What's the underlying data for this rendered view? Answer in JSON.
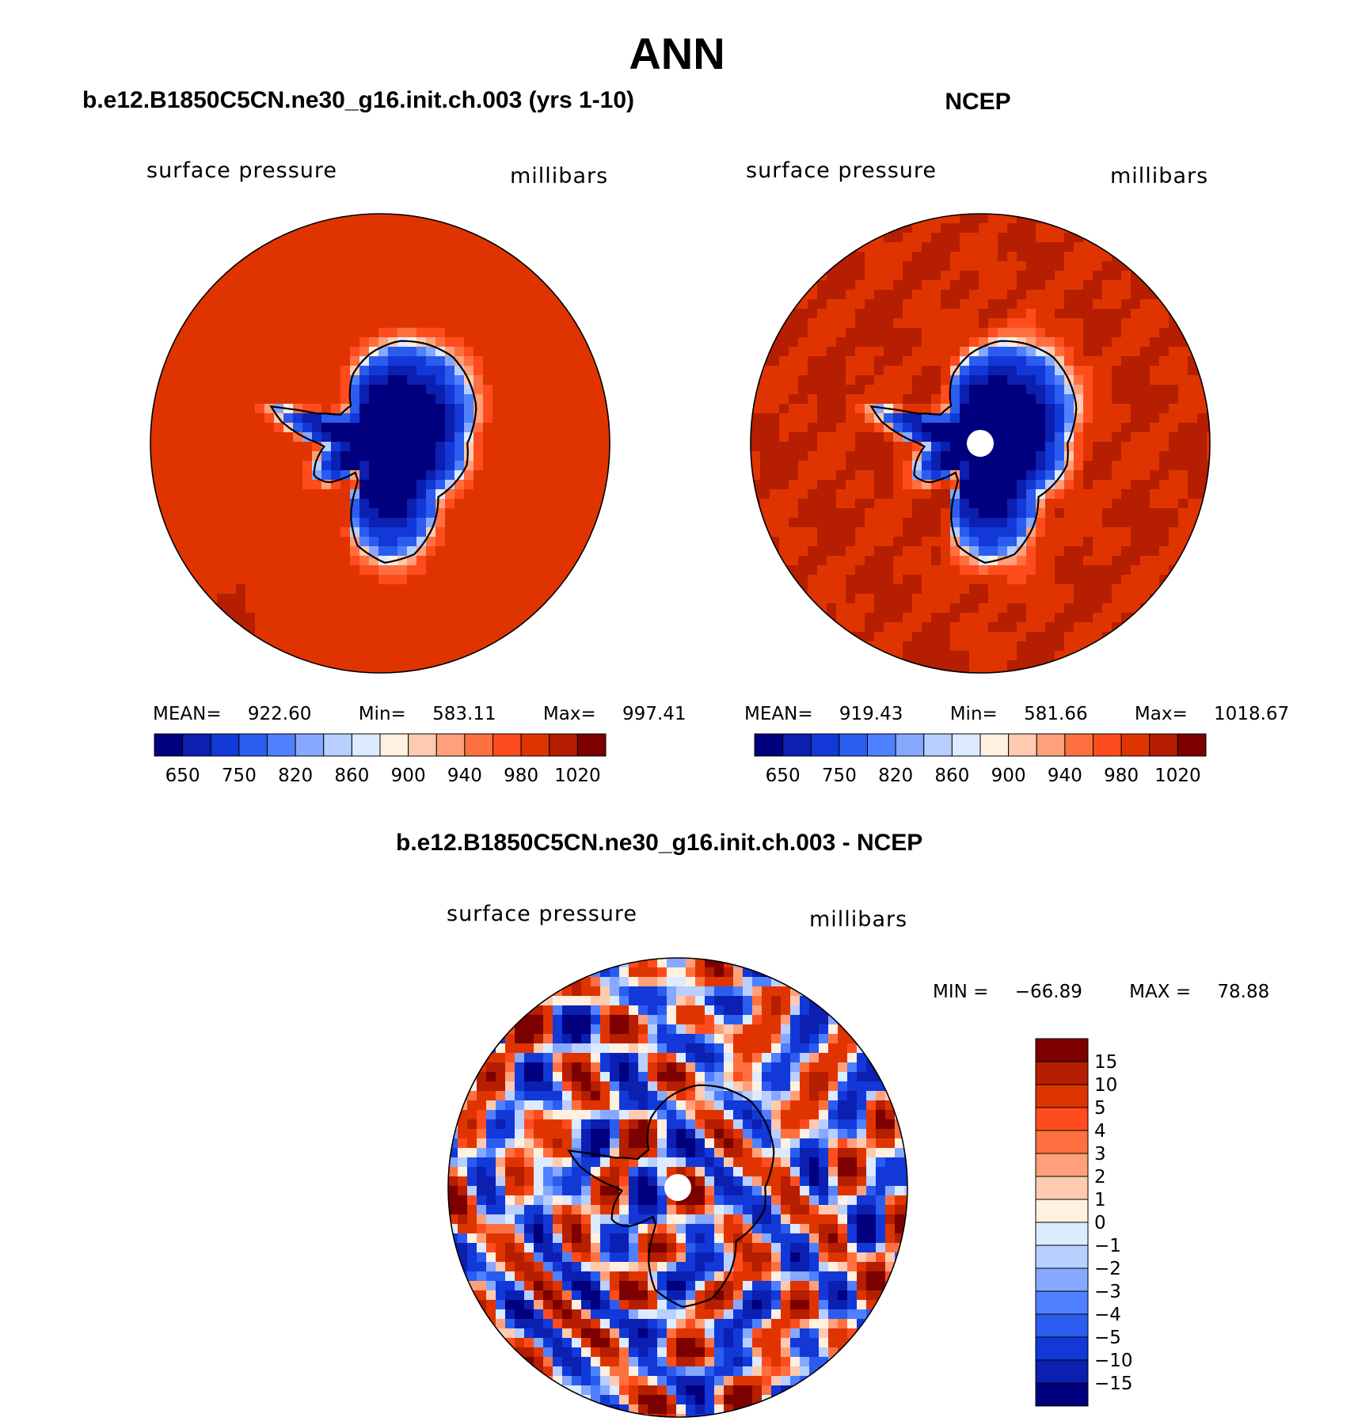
{
  "figure": {
    "title": "ANN"
  },
  "chart_data": [
    {
      "type": "heatmap",
      "projection": "south polar stereographic",
      "title": "b.e12.B1850C5CN.ne30_g16.init.ch.003 (yrs 1-10)",
      "left_label": "surface pressure",
      "right_label": "millibars",
      "stats": {
        "mean_label": "MEAN=",
        "mean": "922.60",
        "min_label": "Min=",
        "min": "583.11",
        "max_label": "Max=",
        "max": "997.41"
      },
      "colorbar": {
        "levels": [
          650,
          700,
          750,
          800,
          820,
          840,
          860,
          880,
          900,
          920,
          940,
          960,
          980,
          1000,
          1020
        ],
        "tick_labels": [
          "650",
          "750",
          "820",
          "860",
          "900",
          "940",
          "980",
          "1020"
        ],
        "colors": [
          "#00007f",
          "#0b1fb0",
          "#1238d8",
          "#2a5cf0",
          "#4f80ff",
          "#86a8ff",
          "#b8cfff",
          "#dcebff",
          "#fff0e0",
          "#ffcbb0",
          "#ffa07a",
          "#ff7040",
          "#ff4c1e",
          "#e03400",
          "#b51e00",
          "#7c0000"
        ]
      },
      "field": {
        "ocean_value": 1000,
        "interior_min": 583.11
      }
    },
    {
      "type": "heatmap",
      "projection": "south polar stereographic",
      "title": "NCEP",
      "left_label": "surface pressure",
      "right_label": "millibars",
      "stats": {
        "mean_label": "MEAN=",
        "mean": "919.43",
        "min_label": "Min=",
        "min": "581.66",
        "max_label": "Max=",
        "max": "1018.67"
      },
      "colorbar": {
        "levels": [
          650,
          700,
          750,
          800,
          820,
          840,
          860,
          880,
          900,
          920,
          940,
          960,
          980,
          1000,
          1020
        ],
        "tick_labels": [
          "650",
          "750",
          "820",
          "860",
          "900",
          "940",
          "980",
          "1020"
        ],
        "colors": [
          "#00007f",
          "#0b1fb0",
          "#1238d8",
          "#2a5cf0",
          "#4f80ff",
          "#86a8ff",
          "#b8cfff",
          "#dcebff",
          "#fff0e0",
          "#ffcbb0",
          "#ffa07a",
          "#ff7040",
          "#ff4c1e",
          "#e03400",
          "#b51e00",
          "#7c0000"
        ]
      },
      "field": {
        "ocean_value": 1000,
        "interior_min": 581.66,
        "missing_pole": true
      }
    },
    {
      "type": "heatmap",
      "projection": "south polar stereographic",
      "title": "b.e12.B1850C5CN.ne30_g16.init.ch.003 - NCEP",
      "left_label": "surface pressure",
      "right_label": "millibars",
      "stats": {
        "min_label": "MIN =",
        "min": "−66.89",
        "max_label": "MAX =",
        "max": "78.88"
      },
      "colorbar": {
        "orientation": "vertical",
        "levels": [
          -15,
          -10,
          -5,
          -4,
          -3,
          -2,
          -1,
          0,
          1,
          2,
          3,
          4,
          5,
          10,
          15
        ],
        "tick_labels": [
          "15",
          "10",
          "5",
          "4",
          "3",
          "2",
          "1",
          "0",
          "−1",
          "−2",
          "−3",
          "−4",
          "−5",
          "−10",
          "−15"
        ],
        "colors": [
          "#00007f",
          "#0b1fb0",
          "#1238d8",
          "#2a5cf0",
          "#4f80ff",
          "#86a8ff",
          "#b8cfff",
          "#dcebff",
          "#fff0e0",
          "#ffcbb0",
          "#ffa07a",
          "#ff7040",
          "#ff4c1e",
          "#e03400",
          "#b51e00",
          "#7c0000"
        ]
      },
      "field": {
        "pattern": "alternating positive/negative anomalies",
        "missing_pole": true
      }
    }
  ]
}
